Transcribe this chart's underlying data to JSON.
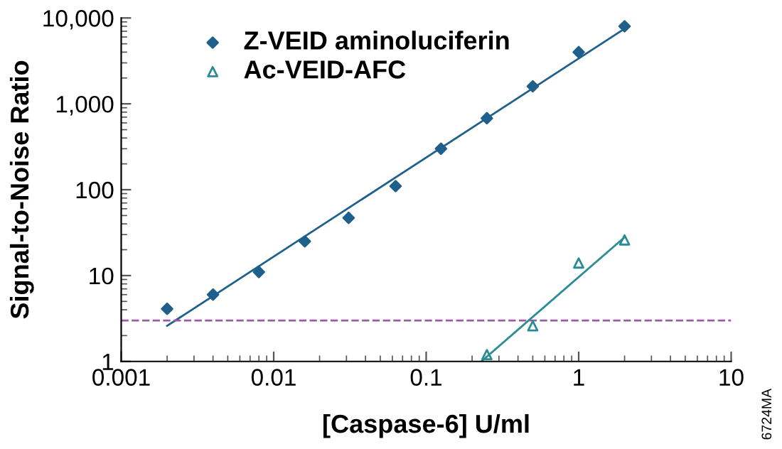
{
  "chart_data": {
    "type": "scatter",
    "xlabel": "[Caspase-6] U/ml",
    "ylabel": "Signal-to-Noise Ratio",
    "log": "xy",
    "xlim": [
      0.001,
      10
    ],
    "xticks": [
      0.001,
      0.01,
      0.1,
      1,
      10
    ],
    "ylim": [
      1,
      10000
    ],
    "yticks": [
      1,
      10,
      100,
      {
        "value": 1000,
        "label": "1,000"
      },
      {
        "value": 10000,
        "label": "10,000"
      }
    ],
    "grid": false,
    "legend": "top left",
    "series": [
      {
        "name": "Z-VEID aminoluciferin",
        "color": "#1f5f8b",
        "marker": "diamond",
        "x": [
          0.002,
          0.004,
          0.008,
          0.016,
          0.031,
          0.063,
          0.125,
          0.25,
          0.5,
          1,
          2
        ],
        "values": [
          4.1,
          6,
          11,
          25,
          47,
          110,
          300,
          680,
          1600,
          4000,
          8000
        ]
      },
      {
        "name": "Ac-VEID-AFC",
        "color": "#2a8c94",
        "marker": "triangle",
        "x": [
          0.25,
          0.5,
          1,
          2
        ],
        "values": [
          1.2,
          2.6,
          14,
          26
        ]
      },
      {
        "type": "line",
        "color": "#1f5f8b",
        "x": [
          0.002,
          2
        ],
        "values": [
          2.6,
          7500
        ]
      },
      {
        "type": "line",
        "color": "#2a8c94",
        "x": [
          0.23,
          2
        ],
        "values": [
          1,
          28
        ]
      }
    ],
    "ref_lines": [
      {
        "axis": "y",
        "value": 3,
        "color": "#9b59a6",
        "line_style": "dashed"
      }
    ],
    "annotations": [
      "6724MA"
    ]
  }
}
